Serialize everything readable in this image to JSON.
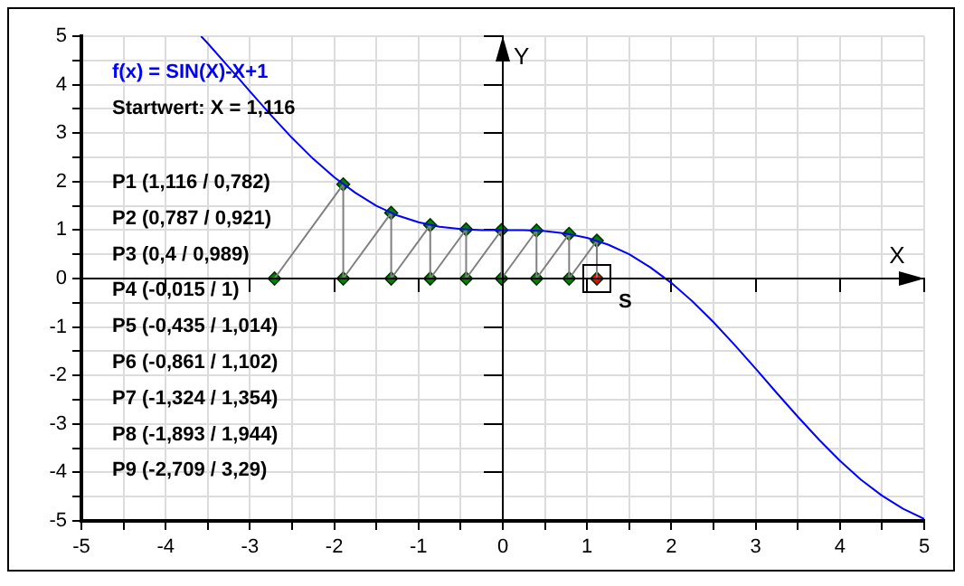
{
  "chart_data": {
    "type": "line",
    "title": "f(x) = SIN(X)-X+1",
    "subtitle": "Startwert: X = 1,116",
    "xlabel": "X",
    "ylabel": "Y",
    "annotations": [
      "P1 (1,116 / 0,782)",
      "P2 (0,787 / 0,921)",
      "P3 (0,4 / 0,989)",
      "P4 (-0,015 / 1)",
      "P5 (-0,435 / 1,014)",
      "P6 (-0,861 / 1,102)",
      "P7 (-1,324 / 1,354)",
      "P8 (-1,893 / 1,944)",
      "P9 (-2,709 / 3,29)",
      {
        "text": "S",
        "x": 1.116,
        "y": 0
      }
    ],
    "xlim": [
      -5,
      5
    ],
    "ylim": [
      -5,
      5
    ],
    "xticks": [
      -5,
      {
        "value": -4.5,
        "label": null
      },
      -4,
      {
        "value": -3.5,
        "label": null
      },
      -3,
      {
        "value": -2.5,
        "label": null
      },
      -2,
      {
        "value": -1.5,
        "label": null
      },
      -1,
      {
        "value": -0.5,
        "label": null
      },
      0,
      {
        "value": 0.5,
        "label": null
      },
      1,
      {
        "value": 1.5,
        "label": null
      },
      2,
      {
        "value": 2.5,
        "label": null
      },
      3,
      {
        "value": 3.5,
        "label": null
      },
      4,
      {
        "value": 4.5,
        "label": null
      },
      5
    ],
    "yticks": [
      -5,
      {
        "value": -4.5,
        "label": null
      },
      -4,
      {
        "value": -3.5,
        "label": null
      },
      -3,
      {
        "value": -2.5,
        "label": null
      },
      -2,
      {
        "value": -1.5,
        "label": null
      },
      -1,
      {
        "value": -0.5,
        "label": null
      },
      0,
      {
        "value": 0.5,
        "label": null
      },
      1,
      {
        "value": 1.5,
        "label": null
      },
      2,
      {
        "value": 2.5,
        "label": null
      },
      3,
      {
        "value": 3.5,
        "label": null
      },
      4,
      {
        "value": 4.5,
        "label": null
      },
      5
    ],
    "grid": true,
    "legend": false,
    "series": [
      {
        "type": "line",
        "color": "#0000ff",
        "marker": "none",
        "line_style": "solid",
        "x": [
          -3.58,
          -3.5,
          -3.25,
          -3,
          -2.75,
          -2.5,
          -2.25,
          -2,
          -1.75,
          -1.5,
          -1.25,
          -1,
          -0.75,
          -0.5,
          -0.25,
          0,
          0.25,
          0.5,
          0.75,
          1,
          1.25,
          1.5,
          1.75,
          2,
          2.25,
          2.5,
          2.75,
          3,
          3.25,
          3.5,
          3.75,
          4,
          4.25,
          4.5,
          4.75,
          5
        ],
        "values": [
          5.0,
          4.85,
          4.36,
          3.86,
          3.37,
          2.9,
          2.47,
          2.09,
          1.77,
          1.5,
          1.3,
          1.16,
          1.07,
          1.02,
          1.0,
          1.0,
          1.0,
          0.98,
          0.93,
          0.84,
          0.7,
          0.5,
          0.23,
          -0.09,
          -0.47,
          -0.9,
          -1.37,
          -1.86,
          -2.36,
          -2.85,
          -3.32,
          -3.76,
          -4.15,
          -4.48,
          -4.75,
          -4.96
        ]
      },
      {
        "type": "line",
        "color": "#808080",
        "marker": "none",
        "line_style": "solid",
        "x": [
          1.116,
          1.116,
          0.787,
          0.787,
          0.4,
          0.4,
          -0.015,
          -0.015,
          -0.435,
          -0.435,
          -0.861,
          -0.861,
          -1.324,
          -1.324,
          -1.893,
          -1.893,
          -2.709
        ],
        "values": [
          0,
          0.782,
          0,
          0.921,
          0,
          0.989,
          0,
          1,
          0,
          1.014,
          0,
          1.102,
          0,
          1.354,
          0,
          1.944,
          0
        ]
      },
      {
        "type": "scatter",
        "color": "#008000",
        "marker": "diamond",
        "x": [
          1.116,
          0.787,
          0.4,
          -0.015,
          -0.435,
          -0.861,
          -1.324,
          -1.893,
          0.787,
          0.4,
          -0.015,
          -0.435,
          -0.861,
          -1.324,
          -1.893,
          -2.709
        ],
        "values": [
          0.782,
          0.921,
          0.989,
          1,
          1.014,
          1.102,
          1.354,
          1.944,
          0,
          0,
          0,
          0,
          0,
          0,
          0,
          0
        ]
      },
      {
        "type": "scatter",
        "color": "#ff0000",
        "marker": "diamond",
        "x": [
          1.116
        ],
        "values": [
          0
        ]
      }
    ]
  }
}
